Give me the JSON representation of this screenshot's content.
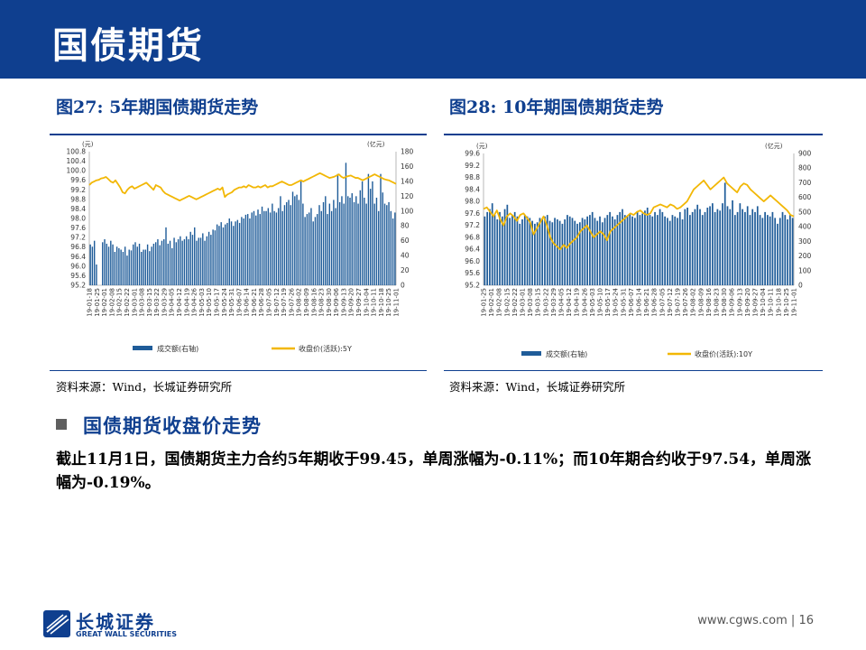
{
  "header": {
    "title": "国债期货"
  },
  "left": {
    "figure_title": "图27:  5年期国债期货走势",
    "source": "资料来源：Wind，长城证券研究所"
  },
  "right": {
    "figure_title": "图28:  10年期国债期货走势",
    "source": "资料来源：Wind，长城证券研究所"
  },
  "section": {
    "title": "国债期货收盘价走势",
    "paragraph": "截止11月1日，国债期货主力合约5年期收于99.45，单周涨幅为-0.11%；而10年期合约收于97.54，单周涨幅为-0.19%。"
  },
  "footer": {
    "logo_cn": "长城证券",
    "logo_en": "GREAT WALL SECURITIES",
    "url_page": "www.cgws.com  |  16"
  },
  "colors": {
    "brand": "#0F3F8F",
    "bar": "#1F5C99",
    "line": "#F2B705"
  },
  "chart_data": [
    {
      "type": "bar+line",
      "ylabel_left": "(元)",
      "ylabel_right": "(亿元)",
      "yleft_ticks": [
        "100.8",
        "100.4",
        "100.0",
        "99.6",
        "99.2",
        "98.8",
        "98.4",
        "98.0",
        "97.6",
        "97.2",
        "96.8",
        "96.4",
        "96.0",
        "95.6",
        "95.2"
      ],
      "yleft_lim": [
        95.2,
        100.8
      ],
      "yright_ticks": [
        "180",
        "160",
        "140",
        "120",
        "100",
        "80",
        "60",
        "40",
        "20",
        "0"
      ],
      "yright_lim": [
        0,
        180
      ],
      "x_labels": [
        "19-01-18",
        "19-01-25",
        "19-02-01",
        "19-02-08",
        "19-02-15",
        "19-02-22",
        "19-03-01",
        "19-03-08",
        "19-03-15",
        "19-03-22",
        "19-03-29",
        "19-04-05",
        "19-04-12",
        "19-04-19",
        "19-04-26",
        "19-05-03",
        "19-05-10",
        "19-05-17",
        "19-05-24",
        "19-05-31",
        "19-06-07",
        "19-06-14",
        "19-06-21",
        "19-06-28",
        "19-07-05",
        "19-07-12",
        "19-07-19",
        "19-07-26",
        "19-08-02",
        "19-08-09",
        "19-08-16",
        "19-08-23",
        "19-08-30",
        "19-09-06",
        "19-09-13",
        "19-09-20",
        "19-09-27",
        "19-10-04",
        "19-10-11",
        "19-10-18",
        "19-10-25",
        "19-11-01"
      ],
      "bar_series": {
        "name": "成交额(右轴)",
        "values": [
          55,
          52,
          60,
          28,
          0,
          0,
          58,
          62,
          56,
          52,
          60,
          55,
          45,
          52,
          50,
          48,
          45,
          52,
          40,
          48,
          47,
          55,
          58,
          52,
          56,
          45,
          48,
          48,
          55,
          46,
          52,
          56,
          58,
          62,
          54,
          60,
          62,
          78,
          56,
          60,
          50,
          64,
          58,
          62,
          66,
          60,
          62,
          66,
          62,
          72,
          68,
          78,
          60,
          64,
          64,
          70,
          60,
          66,
          72,
          68,
          75,
          74,
          82,
          80,
          85,
          78,
          82,
          84,
          90,
          86,
          80,
          86,
          88,
          84,
          92,
          90,
          95,
          96,
          90,
          98,
          100,
          94,
          102,
          96,
          106,
          100,
          100,
          104,
          98,
          110,
          100,
          98,
          104,
          120,
          100,
          108,
          112,
          115,
          108,
          126,
          120,
          122,
          115,
          140,
          110,
          92,
          96,
          98,
          104,
          86,
          92,
          96,
          108,
          100,
          112,
          120,
          96,
          110,
          100,
          115,
          104,
          150,
          112,
          120,
          110,
          165,
          120,
          118,
          124,
          112,
          120,
          110,
          128,
          140,
          118,
          110,
          150,
          130,
          140,
          110,
          118,
          100,
          150,
          125,
          110,
          108,
          112,
          100,
          90,
          98
        ]
      },
      "line_series": {
        "name": "收盘价(活跃):5Y",
        "values": [
          99.4,
          99.5,
          99.55,
          99.6,
          99.62,
          99.68,
          99.7,
          99.74,
          99.65,
          99.55,
          99.5,
          99.6,
          99.45,
          99.3,
          99.1,
          99.05,
          99.2,
          99.3,
          99.35,
          99.25,
          99.3,
          99.35,
          99.4,
          99.45,
          99.5,
          99.4,
          99.3,
          99.2,
          99.4,
          99.35,
          99.3,
          99.15,
          99.05,
          99.0,
          98.95,
          98.9,
          98.85,
          98.8,
          98.75,
          98.8,
          98.85,
          98.9,
          98.95,
          98.9,
          98.85,
          98.8,
          98.85,
          98.9,
          98.95,
          99.0,
          99.05,
          99.1,
          99.15,
          99.2,
          99.25,
          99.2,
          99.3,
          98.9,
          99.0,
          99.05,
          99.1,
          99.2,
          99.25,
          99.3,
          99.3,
          99.35,
          99.3,
          99.4,
          99.35,
          99.3,
          99.3,
          99.35,
          99.3,
          99.35,
          99.4,
          99.3,
          99.35,
          99.35,
          99.4,
          99.45,
          99.5,
          99.55,
          99.5,
          99.45,
          99.4,
          99.4,
          99.45,
          99.5,
          99.55,
          99.6,
          99.55,
          99.6,
          99.65,
          99.7,
          99.75,
          99.8,
          99.85,
          99.9,
          99.85,
          99.8,
          99.75,
          99.7,
          99.72,
          99.75,
          99.8,
          99.85,
          99.75,
          99.7,
          99.75,
          99.78,
          99.8,
          99.75,
          99.7,
          99.7,
          99.65,
          99.6,
          99.65,
          99.7,
          99.75,
          99.8,
          99.85,
          99.8,
          99.75,
          99.7,
          99.65,
          99.62,
          99.6,
          99.55,
          99.5,
          99.45
        ]
      }
    },
    {
      "type": "bar+line",
      "ylabel_left": "(元)",
      "ylabel_right": "(亿元)",
      "yleft_ticks": [
        "99.6",
        "99.2",
        "98.8",
        "98.4",
        "98.0",
        "97.6",
        "97.2",
        "96.8",
        "96.4",
        "96.0",
        "95.6",
        "95.2"
      ],
      "yleft_lim": [
        95.2,
        99.6
      ],
      "yright_ticks": [
        "900",
        "800",
        "700",
        "600",
        "500",
        "400",
        "300",
        "200",
        "100",
        "0"
      ],
      "yright_lim": [
        0,
        900
      ],
      "x_labels": [
        "19-01-25",
        "19-02-01",
        "19-02-08",
        "19-02-15",
        "19-02-22",
        "19-03-01",
        "19-03-08",
        "19-03-15",
        "19-03-22",
        "19-03-29",
        "19-04-05",
        "19-04-12",
        "19-04-19",
        "19-04-26",
        "19-05-03",
        "19-05-10",
        "19-05-17",
        "19-05-24",
        "19-05-31",
        "19-06-07",
        "19-06-14",
        "19-06-21",
        "19-06-28",
        "19-07-05",
        "19-07-12",
        "19-07-19",
        "19-07-26",
        "19-08-02",
        "19-08-09",
        "19-08-16",
        "19-08-23",
        "19-08-30",
        "19-09-06",
        "19-09-13",
        "19-09-20",
        "19-09-27",
        "19-10-04",
        "19-10-11",
        "19-10-18",
        "19-10-25",
        "19-11-01"
      ],
      "bar_series": {
        "name": "成交额(右轴)",
        "values": [
          470,
          500,
          520,
          560,
          480,
          450,
          500,
          470,
          520,
          550,
          460,
          480,
          500,
          470,
          420,
          450,
          480,
          470,
          460,
          440,
          420,
          430,
          460,
          450,
          470,
          480,
          440,
          430,
          460,
          450,
          440,
          420,
          450,
          480,
          470,
          460,
          440,
          420,
          430,
          460,
          450,
          470,
          480,
          500,
          460,
          440,
          470,
          430,
          460,
          480,
          500,
          470,
          450,
          480,
          500,
          520,
          480,
          470,
          490,
          470,
          460,
          500,
          480,
          490,
          510,
          530,
          480,
          470,
          500,
          480,
          520,
          500,
          470,
          460,
          440,
          480,
          470,
          460,
          500,
          450,
          520,
          530,
          480,
          500,
          520,
          550,
          520,
          480,
          500,
          530,
          540,
          560,
          500,
          520,
          510,
          560,
          700,
          540,
          520,
          580,
          480,
          500,
          560,
          520,
          500,
          540,
          480,
          520,
          500,
          540,
          480,
          460,
          500,
          480,
          470,
          500,
          460,
          420,
          460,
          500,
          480,
          450,
          480,
          460
        ]
      },
      "line_series": {
        "name": "收盘价(活跃):10Y",
        "values": [
          97.75,
          97.8,
          97.65,
          97.5,
          97.7,
          97.4,
          97.2,
          97.5,
          97.6,
          97.5,
          97.35,
          97.55,
          97.6,
          97.45,
          97.3,
          96.9,
          97.1,
          97.3,
          97.5,
          97.2,
          96.8,
          96.6,
          96.5,
          96.4,
          96.55,
          96.45,
          96.6,
          96.7,
          96.8,
          97.0,
          97.1,
          97.2,
          97.0,
          96.8,
          96.9,
          97.0,
          96.9,
          96.7,
          97.0,
          97.1,
          97.2,
          97.3,
          97.4,
          97.5,
          97.6,
          97.55,
          97.65,
          97.7,
          97.6,
          97.55,
          97.6,
          97.8,
          97.85,
          97.9,
          97.85,
          97.8,
          97.9,
          97.85,
          97.75,
          97.8,
          97.9,
          98.0,
          98.2,
          98.4,
          98.5,
          98.6,
          98.7,
          98.55,
          98.4,
          98.5,
          98.6,
          98.7,
          98.8,
          98.6,
          98.5,
          98.4,
          98.3,
          98.5,
          98.6,
          98.55,
          98.4,
          98.3,
          98.2,
          98.1,
          98.0,
          98.1,
          98.2,
          98.1,
          98.0,
          97.9,
          97.8,
          97.7,
          97.55,
          97.5
        ]
      }
    }
  ]
}
